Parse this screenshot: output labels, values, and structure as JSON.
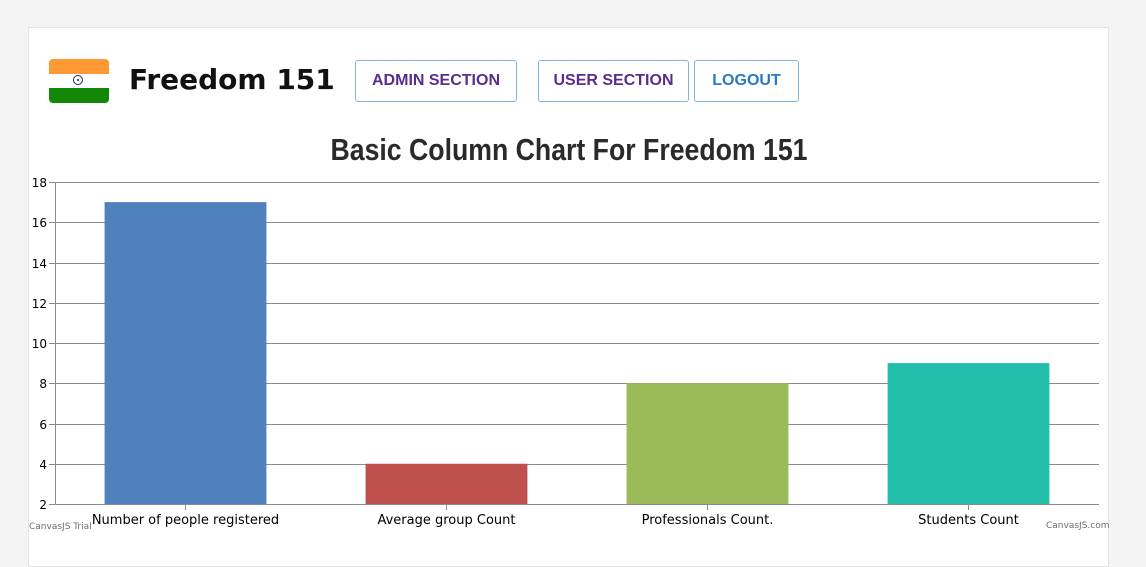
{
  "header": {
    "brand": "Freedom 151",
    "flag_colors": {
      "saffron": "#ff9933",
      "white": "#ffffff",
      "green": "#138808",
      "chakra": "#1b2a7a"
    },
    "nav": [
      {
        "label": "ADMIN SECTION",
        "color": "#5b2c8e"
      },
      {
        "label": "USER SECTION",
        "color": "#5b2c8e"
      },
      {
        "label": "LOGOUT",
        "color": "#2a7bbf"
      }
    ]
  },
  "chart_data": {
    "type": "bar",
    "title": "Basic Column Chart For Freedom 151",
    "categories": [
      "Number of people registered",
      "Average group Count",
      "Professionals Count.",
      "Students Count"
    ],
    "values": [
      17,
      4,
      8,
      9
    ],
    "colors": [
      "#4f81bc",
      "#c0504e",
      "#9bbb58",
      "#23bfaa"
    ],
    "ylim": [
      2,
      18
    ],
    "yticks": [
      2,
      4,
      6,
      8,
      10,
      12,
      14,
      16,
      18
    ],
    "grid": true
  },
  "credits": {
    "left": "CanvasJS Trial",
    "right": "CanvasJS.com"
  }
}
